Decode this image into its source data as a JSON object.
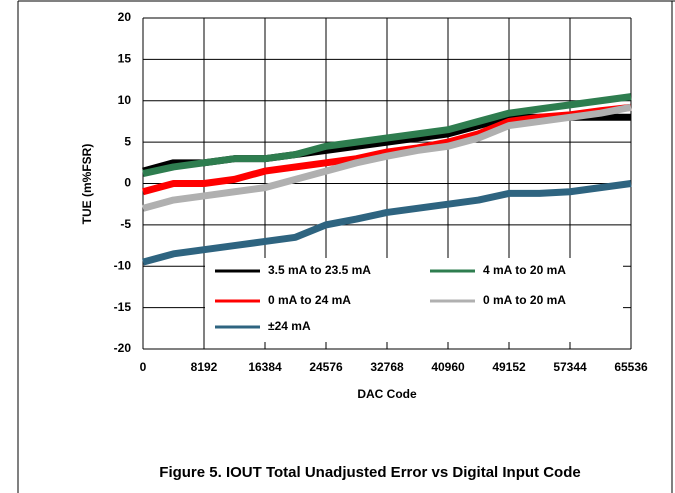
{
  "chart_data": {
    "type": "line",
    "caption": "Figure 5. IOUT Total Unadjusted Error vs Digital Input Code",
    "x_label": "DAC Code",
    "y_label": "TUE (m%FSR)",
    "x": [
      0,
      4096,
      8192,
      12288,
      16384,
      20480,
      24576,
      28672,
      32768,
      36864,
      40960,
      45056,
      49152,
      53248,
      57344,
      61440,
      65536
    ],
    "series": [
      {
        "name": "3.5 mA to 23.5 mA",
        "color": "#000000",
        "values": [
          1.5,
          2.5,
          2.5,
          3,
          3,
          3.5,
          4,
          4.5,
          5,
          5.5,
          6,
          7,
          8,
          8,
          8,
          8,
          8
        ]
      },
      {
        "name": "4 mA to 20 mA",
        "color": "#2e7d4f",
        "values": [
          1.2,
          2,
          2.5,
          3,
          3,
          3.5,
          4.5,
          5,
          5.5,
          6,
          6.5,
          7.5,
          8.5,
          9,
          9.5,
          10,
          10.5
        ]
      },
      {
        "name": "0 mA to 24 mA",
        "color": "#ff0000",
        "values": [
          -1,
          0,
          0,
          0.5,
          1.5,
          2,
          2.5,
          3,
          3.8,
          4.3,
          5,
          6,
          7.5,
          8,
          8.3,
          8.8,
          9.2
        ]
      },
      {
        "name": "0 mA to 20 mA",
        "color": "#b0b0b0",
        "values": [
          -3,
          -2,
          -1.5,
          -1,
          -0.5,
          0.5,
          1.5,
          2.5,
          3.3,
          4,
          4.5,
          5.5,
          7,
          7.5,
          8,
          8.5,
          9.2
        ]
      },
      {
        "name": "±24 mA",
        "color": "#2e6480",
        "values": [
          -9.5,
          -8.5,
          -8,
          -7.5,
          -7,
          -6.5,
          -5,
          -4.3,
          -3.5,
          -3,
          -2.5,
          -2,
          -1.2,
          -1.2,
          -1,
          -0.5,
          0
        ]
      }
    ],
    "xlim": [
      0,
      65536
    ],
    "xticks": [
      0,
      8192,
      16384,
      24576,
      32768,
      40960,
      49152,
      57344,
      65536
    ],
    "ylim": [
      -20,
      20
    ],
    "yticks": [
      -20,
      -15,
      -10,
      -5,
      0,
      5,
      10,
      15,
      20
    ],
    "grid": true,
    "legend": "bottom"
  }
}
